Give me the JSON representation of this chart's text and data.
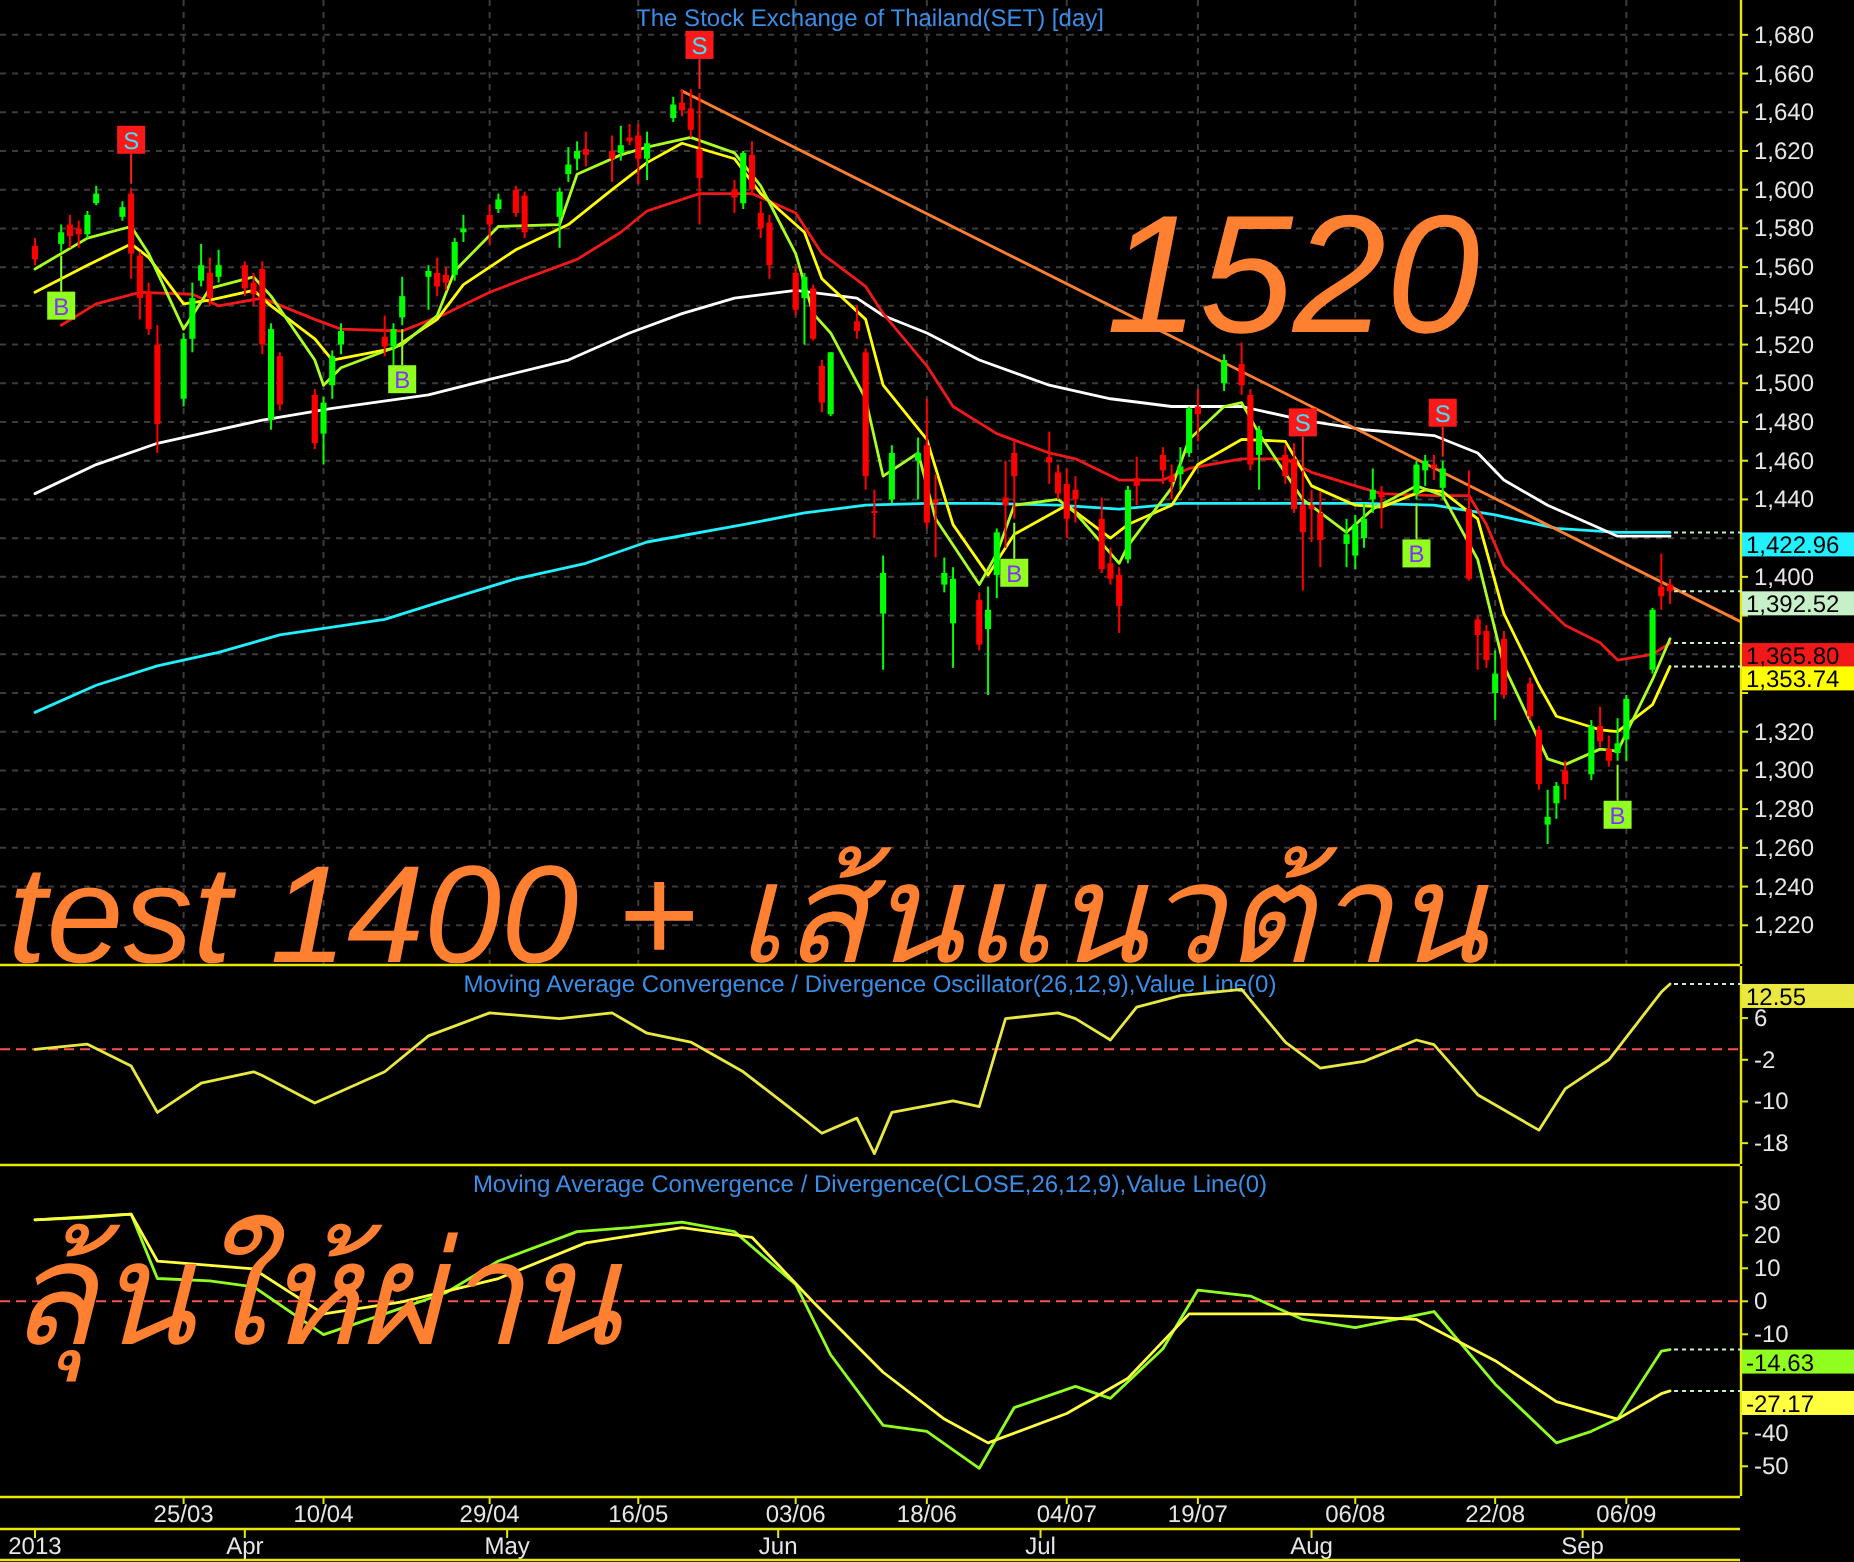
{
  "chart_data": [
    {
      "type": "candlestick",
      "title": "The Stock Exchange of Thailand(SET) [day]",
      "xlim": [
        "2013-03-04",
        "2013-09-19"
      ],
      "ylim": [
        1200,
        1698
      ],
      "grid": true,
      "tick_labels": "y",
      "xticks": [
        {
          "value": "2013-03-25",
          "label": null
        },
        {
          "value": "2013-04-10",
          "label": null
        },
        {
          "value": "2013-04-29",
          "label": null
        },
        {
          "value": "2013-05-16",
          "label": null
        },
        {
          "value": "2013-06-03",
          "label": null
        },
        {
          "value": "2013-06-18",
          "label": null
        },
        {
          "value": "2013-07-04",
          "label": null
        },
        {
          "value": "2013-07-19",
          "label": null
        },
        {
          "value": "2013-08-06",
          "label": null
        },
        {
          "value": "2013-08-22",
          "label": null
        },
        {
          "value": "2013-09-06",
          "label": null
        }
      ],
      "yticks": [
        {
          "value": 1220,
          "label": "1,220"
        },
        {
          "value": 1240,
          "label": "1,240"
        },
        {
          "value": 1260,
          "label": "1,260"
        },
        {
          "value": 1280,
          "label": "1,280"
        },
        {
          "value": 1300,
          "label": "1,300"
        },
        {
          "value": 1320,
          "label": "1,320"
        },
        {
          "value": 1340,
          "label": null
        },
        {
          "value": 1360,
          "label": null
        },
        {
          "value": 1380,
          "label": null
        },
        {
          "value": 1400,
          "label": "1,400"
        },
        {
          "value": 1420,
          "label": null
        },
        {
          "value": 1440,
          "label": "1,440"
        },
        {
          "value": 1460,
          "label": "1,460"
        },
        {
          "value": 1480,
          "label": "1,480"
        },
        {
          "value": 1500,
          "label": "1,500"
        },
        {
          "value": 1520,
          "label": "1,520"
        },
        {
          "value": 1540,
          "label": "1,540"
        },
        {
          "value": 1560,
          "label": "1,560"
        },
        {
          "value": 1580,
          "label": "1,580"
        },
        {
          "value": 1600,
          "label": "1,600"
        },
        {
          "value": 1620,
          "label": "1,620"
        },
        {
          "value": 1640,
          "label": "1,640"
        },
        {
          "value": 1660,
          "label": "1,660"
        },
        {
          "value": 1680,
          "label": "1,680"
        }
      ],
      "x": [
        "2013-03-08",
        "2013-03-11",
        "2013-03-12",
        "2013-03-13",
        "2013-03-14",
        "2013-03-15",
        "2013-03-18",
        "2013-03-19",
        "2013-03-20",
        "2013-03-21",
        "2013-03-22",
        "2013-03-25",
        "2013-03-26",
        "2013-03-27",
        "2013-03-28",
        "2013-03-29",
        "2013-04-01",
        "2013-04-02",
        "2013-04-03",
        "2013-04-04",
        "2013-04-05",
        "2013-04-09",
        "2013-04-10",
        "2013-04-11",
        "2013-04-12",
        "2013-04-17",
        "2013-04-18",
        "2013-04-19",
        "2013-04-22",
        "2013-04-23",
        "2013-04-24",
        "2013-04-25",
        "2013-04-26",
        "2013-04-29",
        "2013-04-30",
        "2013-05-02",
        "2013-05-03",
        "2013-05-07",
        "2013-05-08",
        "2013-05-09",
        "2013-05-10",
        "2013-05-13",
        "2013-05-14",
        "2013-05-15",
        "2013-05-16",
        "2013-05-17",
        "2013-05-20",
        "2013-05-21",
        "2013-05-22",
        "2013-05-23",
        "2013-05-27",
        "2013-05-28",
        "2013-05-29",
        "2013-05-30",
        "2013-05-31",
        "2013-06-03",
        "2013-06-04",
        "2013-06-05",
        "2013-06-06",
        "2013-06-07",
        "2013-06-10",
        "2013-06-11",
        "2013-06-12",
        "2013-06-13",
        "2013-06-14",
        "2013-06-17",
        "2013-06-18",
        "2013-06-19",
        "2013-06-20",
        "2013-06-21",
        "2013-06-24",
        "2013-06-25",
        "2013-06-26",
        "2013-06-27",
        "2013-06-28",
        "2013-07-02",
        "2013-07-03",
        "2013-07-04",
        "2013-07-05",
        "2013-07-08",
        "2013-07-09",
        "2013-07-10",
        "2013-07-11",
        "2013-07-12",
        "2013-07-15",
        "2013-07-16",
        "2013-07-17",
        "2013-07-18",
        "2013-07-19",
        "2013-07-22",
        "2013-07-24",
        "2013-07-25",
        "2013-07-26",
        "2013-07-29",
        "2013-07-30",
        "2013-07-31",
        "2013-08-01",
        "2013-08-02",
        "2013-08-05",
        "2013-08-06",
        "2013-08-07",
        "2013-08-08",
        "2013-08-09",
        "2013-08-13",
        "2013-08-14",
        "2013-08-15",
        "2013-08-16",
        "2013-08-19",
        "2013-08-20",
        "2013-08-21",
        "2013-08-22",
        "2013-08-23",
        "2013-08-26",
        "2013-08-27",
        "2013-08-28",
        "2013-08-29",
        "2013-08-30",
        "2013-09-02",
        "2013-09-03",
        "2013-09-04",
        "2013-09-05",
        "2013-09-06",
        "2013-09-09",
        "2013-09-10",
        "2013-09-11"
      ],
      "ohlc": [
        [
          1571,
          1575,
          1561,
          1564
        ],
        [
          1572,
          1582,
          1568,
          1578
        ],
        [
          1582,
          1587,
          1570,
          1576
        ],
        [
          1580,
          1584,
          1570,
          1577
        ],
        [
          1577,
          1589,
          1575,
          1587
        ],
        [
          1593,
          1602,
          1592,
          1598
        ],
        [
          1586,
          1594,
          1584,
          1591
        ],
        [
          1598,
          1601,
          1554,
          1567
        ],
        [
          1566,
          1568,
          1533,
          1544
        ],
        [
          1547,
          1552,
          1525,
          1528
        ],
        [
          1520,
          1530,
          1464,
          1479
        ],
        [
          1492,
          1526,
          1488,
          1523
        ],
        [
          1523,
          1552,
          1516,
          1544
        ],
        [
          1553,
          1572,
          1550,
          1561
        ],
        [
          1557,
          1565,
          1540,
          1544
        ],
        [
          1555,
          1569,
          1552,
          1561
        ],
        [
          1561,
          1563,
          1545,
          1549
        ],
        [
          1552,
          1557,
          1540,
          1546
        ],
        [
          1559,
          1563,
          1515,
          1520
        ],
        [
          1481,
          1531,
          1476,
          1528
        ],
        [
          1514,
          1516,
          1486,
          1489
        ],
        [
          1494,
          1497,
          1466,
          1469
        ],
        [
          1474,
          1493,
          1458,
          1490
        ],
        [
          1499,
          1517,
          1492,
          1514
        ],
        [
          1520,
          1531,
          1515,
          1527
        ],
        [
          1524,
          1535,
          1514,
          1519
        ],
        [
          1519,
          1531,
          1508,
          1528
        ],
        [
          1534,
          1555,
          1530,
          1545
        ],
        [
          1555,
          1561,
          1538,
          1558
        ],
        [
          1557,
          1565,
          1545,
          1550
        ],
        [
          1556,
          1560,
          1548,
          1552
        ],
        [
          1556,
          1575,
          1553,
          1573
        ],
        [
          1578,
          1587,
          1573,
          1580
        ],
        [
          1587,
          1592,
          1572,
          1582
        ],
        [
          1590,
          1598,
          1588,
          1595
        ],
        [
          1600,
          1602,
          1586,
          1588
        ],
        [
          1597,
          1599,
          1575,
          1578
        ],
        [
          1586,
          1601,
          1570,
          1599
        ],
        [
          1608,
          1622,
          1604,
          1613
        ],
        [
          1616,
          1625,
          1610,
          1620
        ],
        [
          1621,
          1630,
          1612,
          1618
        ],
        [
          1620,
          1628,
          1604,
          1616
        ],
        [
          1619,
          1633,
          1615,
          1623
        ],
        [
          1627,
          1634,
          1623,
          1625
        ],
        [
          1628,
          1634,
          1603,
          1616
        ],
        [
          1616,
          1630,
          1605,
          1624
        ],
        [
          1637,
          1648,
          1635,
          1644
        ],
        [
          1645,
          1652,
          1638,
          1641
        ],
        [
          1642,
          1652,
          1627,
          1631
        ],
        [
          1621,
          1650,
          1582,
          1606
        ],
        [
          1600,
          1605,
          1588,
          1596
        ],
        [
          1593,
          1620,
          1590,
          1619
        ],
        [
          1618,
          1625,
          1597,
          1600
        ],
        [
          1588,
          1594,
          1575,
          1580
        ],
        [
          1583,
          1587,
          1554,
          1561
        ],
        [
          1557,
          1560,
          1535,
          1538
        ],
        [
          1544,
          1557,
          1520,
          1555
        ],
        [
          1549,
          1551,
          1522,
          1523
        ],
        [
          1509,
          1512,
          1485,
          1490
        ],
        [
          1484,
          1516,
          1483,
          1516
        ],
        [
          1532,
          1540,
          1523,
          1527
        ],
        [
          1516,
          1518,
          1445,
          1452
        ],
        [
          1434,
          1445,
          1420,
          1433
        ],
        [
          1381,
          1411,
          1352,
          1402
        ],
        [
          1440,
          1468,
          1438,
          1464
        ],
        [
          1460,
          1472,
          1440,
          1464
        ],
        [
          1468,
          1492,
          1425,
          1428
        ],
        [
          1440,
          1453,
          1410,
          1438
        ],
        [
          1396,
          1410,
          1392,
          1402
        ],
        [
          1376,
          1405,
          1353,
          1399
        ],
        [
          1388,
          1392,
          1362,
          1365
        ],
        [
          1373,
          1395,
          1339,
          1383
        ],
        [
          1401,
          1425,
          1389,
          1423
        ],
        [
          1441,
          1460,
          1415,
          1437
        ],
        [
          1464,
          1470,
          1430,
          1452
        ],
        [
          1462,
          1475,
          1448,
          1459
        ],
        [
          1454,
          1458,
          1440,
          1443
        ],
        [
          1448,
          1456,
          1420,
          1430
        ],
        [
          1445,
          1452,
          1428,
          1440
        ],
        [
          1430,
          1441,
          1402,
          1404
        ],
        [
          1407,
          1415,
          1396,
          1399
        ],
        [
          1401,
          1405,
          1371,
          1385
        ],
        [
          1409,
          1447,
          1407,
          1445
        ],
        [
          1451,
          1462,
          1437,
          1447
        ],
        [
          1463,
          1467,
          1448,
          1455
        ],
        [
          1452,
          1458,
          1440,
          1449
        ],
        [
          1453,
          1467,
          1445,
          1457
        ],
        [
          1464,
          1488,
          1462,
          1487
        ],
        [
          1488,
          1497,
          1470,
          1484
        ],
        [
          1500,
          1515,
          1496,
          1512
        ],
        [
          1510,
          1521,
          1494,
          1499
        ],
        [
          1494,
          1497,
          1455,
          1458
        ],
        [
          1463,
          1478,
          1445,
          1476
        ],
        [
          1463,
          1468,
          1448,
          1452
        ],
        [
          1461,
          1469,
          1433,
          1435
        ],
        [
          1437,
          1455,
          1393,
          1423
        ],
        [
          1437,
          1445,
          1418,
          1435
        ],
        [
          1433,
          1444,
          1405,
          1419
        ],
        [
          1417,
          1430,
          1405,
          1422
        ],
        [
          1411,
          1432,
          1404,
          1427
        ],
        [
          1420,
          1438,
          1415,
          1430
        ],
        [
          1440,
          1456,
          1433,
          1445
        ],
        [
          1444,
          1447,
          1425,
          1441
        ],
        [
          1443,
          1460,
          1440,
          1458
        ],
        [
          1455,
          1463,
          1447,
          1460
        ],
        [
          1458,
          1463,
          1450,
          1456
        ],
        [
          1446,
          1460,
          1440,
          1456
        ],
        [
          1435,
          1455,
          1398,
          1399
        ],
        [
          1378,
          1380,
          1352,
          1370
        ],
        [
          1372,
          1375,
          1353,
          1357
        ],
        [
          1340,
          1362,
          1326,
          1350
        ],
        [
          1368,
          1372,
          1337,
          1339
        ],
        [
          1345,
          1348,
          1326,
          1328
        ],
        [
          1321,
          1323,
          1290,
          1293
        ],
        [
          1272,
          1290,
          1262,
          1276
        ],
        [
          1283,
          1294,
          1275,
          1292
        ],
        [
          1300,
          1305,
          1285,
          1293
        ],
        [
          1298,
          1326,
          1295,
          1323
        ],
        [
          1323,
          1333,
          1312,
          1315
        ],
        [
          1311,
          1318,
          1302,
          1305
        ],
        [
          1309,
          1327,
          1305,
          1314
        ],
        [
          1316,
          1339,
          1305,
          1337
        ],
        [
          1352,
          1384,
          1350,
          1383
        ],
        [
          1395,
          1412,
          1383,
          1390
        ],
        [
          1396,
          1399,
          1386,
          1392.52
        ]
      ],
      "series": [
        {
          "type": "line",
          "color": "#20f0ff",
          "x": [
            "2013-03-08",
            "2013-03-15",
            "2013-03-22",
            "2013-03-29",
            "2013-04-05",
            "2013-04-17",
            "2013-04-24",
            "2013-05-02",
            "2013-05-10",
            "2013-05-17",
            "2013-05-28",
            "2013-06-04",
            "2013-06-11",
            "2013-06-18",
            "2013-06-25",
            "2013-07-03",
            "2013-07-10",
            "2013-07-17",
            "2013-07-24",
            "2013-07-31",
            "2013-08-07",
            "2013-08-15",
            "2013-08-22",
            "2013-08-29",
            "2013-09-05",
            "2013-09-11"
          ],
          "values": [
            1330,
            1344,
            1354,
            1361,
            1370,
            1378,
            1388,
            1399,
            1407,
            1418,
            1427,
            1433,
            1437,
            1438,
            1438,
            1437,
            1435,
            1438,
            1438,
            1438,
            1438,
            1437,
            1432,
            1425,
            1423,
            1422.96
          ]
        },
        {
          "type": "line",
          "color": "#ffffff",
          "x": [
            "2013-03-08",
            "2013-03-15",
            "2013-03-22",
            "2013-03-27",
            "2013-04-03",
            "2013-04-11",
            "2013-04-22",
            "2013-04-29",
            "2013-05-08",
            "2013-05-15",
            "2013-05-21",
            "2013-05-27",
            "2013-06-03",
            "2013-06-10",
            "2013-06-13",
            "2013-06-18",
            "2013-06-24",
            "2013-07-02",
            "2013-07-09",
            "2013-07-16",
            "2013-07-24",
            "2013-07-31",
            "2013-08-07",
            "2013-08-15",
            "2013-08-20",
            "2013-08-23",
            "2013-08-28",
            "2013-09-02",
            "2013-09-05",
            "2013-09-11"
          ],
          "values": [
            1443,
            1458,
            1469,
            1474,
            1481,
            1487,
            1494,
            1502,
            1512,
            1526,
            1536,
            1544,
            1548,
            1544,
            1535,
            1526,
            1512,
            1499,
            1492,
            1488,
            1488,
            1481,
            1476,
            1473,
            1464,
            1450,
            1437,
            1427,
            1421,
            1421
          ]
        },
        {
          "type": "line",
          "color": "#f01818",
          "x": [
            "2013-03-11",
            "2013-03-15",
            "2013-03-20",
            "2013-03-26",
            "2013-03-29",
            "2013-04-03",
            "2013-04-09",
            "2013-04-12",
            "2013-04-19",
            "2013-04-24",
            "2013-04-29",
            "2013-05-03",
            "2013-05-09",
            "2013-05-14",
            "2013-05-17",
            "2013-05-23",
            "2013-05-29",
            "2013-06-03",
            "2013-06-06",
            "2013-06-11",
            "2013-06-13",
            "2013-06-18",
            "2013-06-21",
            "2013-06-26",
            "2013-07-02",
            "2013-07-05",
            "2013-07-10",
            "2013-07-15",
            "2013-07-18",
            "2013-07-24",
            "2013-07-29",
            "2013-08-01",
            "2013-08-06",
            "2013-08-09",
            "2013-08-15",
            "2013-08-19",
            "2013-08-21",
            "2013-08-23",
            "2013-08-27",
            "2013-08-30",
            "2013-09-03",
            "2013-09-05",
            "2013-09-09",
            "2013-09-11"
          ],
          "values": [
            1530,
            1541,
            1547,
            1546,
            1540,
            1544,
            1533,
            1528,
            1527,
            1536,
            1547,
            1554,
            1564,
            1578,
            1589,
            1598,
            1598,
            1588,
            1567,
            1550,
            1536,
            1509,
            1488,
            1474,
            1464,
            1461,
            1450,
            1450,
            1456,
            1461,
            1461,
            1454,
            1447,
            1443,
            1442,
            1442,
            1427,
            1406,
            1388,
            1375,
            1366,
            1357,
            1360,
            1365.8
          ]
        },
        {
          "type": "line",
          "color": "#ffff00",
          "x": [
            "2013-03-08",
            "2013-03-14",
            "2013-03-19",
            "2013-03-21",
            "2013-03-25",
            "2013-03-28",
            "2013-04-02",
            "2013-04-04",
            "2013-04-09",
            "2013-04-11",
            "2013-04-18",
            "2013-04-23",
            "2013-04-26",
            "2013-05-02",
            "2013-05-08",
            "2013-05-13",
            "2013-05-17",
            "2013-05-21",
            "2013-05-27",
            "2013-05-30",
            "2013-06-04",
            "2013-06-06",
            "2013-06-11",
            "2013-06-13",
            "2013-06-18",
            "2013-06-21",
            "2013-06-25",
            "2013-06-28",
            "2013-07-04",
            "2013-07-09",
            "2013-07-11",
            "2013-07-16",
            "2013-07-19",
            "2013-07-24",
            "2013-07-29",
            "2013-08-01",
            "2013-08-06",
            "2013-08-09",
            "2013-08-14",
            "2013-08-16",
            "2013-08-20",
            "2013-08-23",
            "2013-08-27",
            "2013-08-29",
            "2013-09-03",
            "2013-09-05",
            "2013-09-09",
            "2013-09-11"
          ],
          "values": [
            1547,
            1561,
            1572,
            1565,
            1541,
            1543,
            1548,
            1540,
            1523,
            1512,
            1518,
            1533,
            1551,
            1569,
            1582,
            1600,
            1614,
            1624,
            1616,
            1598,
            1578,
            1554,
            1533,
            1499,
            1471,
            1427,
            1401,
            1422,
            1437,
            1420,
            1427,
            1437,
            1458,
            1471,
            1470,
            1447,
            1437,
            1436,
            1445,
            1444,
            1430,
            1381,
            1344,
            1328,
            1321,
            1320,
            1334,
            1353.74
          ]
        },
        {
          "type": "line",
          "color": "#a8ff20",
          "x": [
            "2013-03-08",
            "2013-03-14",
            "2013-03-19",
            "2013-03-21",
            "2013-03-25",
            "2013-03-28",
            "2013-04-02",
            "2013-04-04",
            "2013-04-09",
            "2013-04-10",
            "2013-04-12",
            "2013-04-19",
            "2013-04-23",
            "2013-04-25",
            "2013-04-30",
            "2013-05-07",
            "2013-05-09",
            "2013-05-14",
            "2013-05-17",
            "2013-05-22",
            "2013-05-27",
            "2013-05-30",
            "2013-06-03",
            "2013-06-05",
            "2013-06-07",
            "2013-06-11",
            "2013-06-13",
            "2013-06-17",
            "2013-06-19",
            "2013-06-24",
            "2013-06-26",
            "2013-06-28",
            "2013-07-03",
            "2013-07-05",
            "2013-07-10",
            "2013-07-11",
            "2013-07-16",
            "2013-07-18",
            "2013-07-22",
            "2013-07-24",
            "2013-07-26",
            "2013-07-31",
            "2013-08-05",
            "2013-08-08",
            "2013-08-13",
            "2013-08-16",
            "2013-08-20",
            "2013-08-23",
            "2013-08-28",
            "2013-08-30",
            "2013-09-03",
            "2013-09-05",
            "2013-09-09",
            "2013-09-11"
          ],
          "values": [
            1559,
            1575,
            1581,
            1567,
            1528,
            1549,
            1555,
            1545,
            1512,
            1499,
            1508,
            1520,
            1535,
            1558,
            1581,
            1582,
            1608,
            1618,
            1622,
            1627,
            1619,
            1602,
            1567,
            1536,
            1526,
            1492,
            1452,
            1464,
            1430,
            1396,
            1412,
            1437,
            1440,
            1433,
            1407,
            1416,
            1446,
            1471,
            1488,
            1490,
            1474,
            1440,
            1423,
            1435,
            1447,
            1442,
            1409,
            1354,
            1306,
            1303,
            1311,
            1310,
            1347,
            1368
          ]
        },
        {
          "type": "line",
          "color": "#ff8030",
          "x": [
            "2013-05-21",
            "2013-09-19"
          ],
          "values": [
            1651,
            1377
          ]
        }
      ],
      "annotations": [
        "1520",
        "test 1400 + เส้นแนวต้าน",
        {
          "text": "B",
          "x": "2013-03-11",
          "y": 1568
        },
        {
          "text": "S",
          "x": "2013-03-19",
          "y": 1601
        },
        {
          "text": "B",
          "x": "2013-04-19",
          "y": 1530
        },
        {
          "text": "S",
          "x": "2013-05-23",
          "y": 1650
        },
        {
          "text": "B",
          "x": "2013-06-28",
          "y": 1430
        },
        {
          "text": "S",
          "x": "2013-07-31",
          "y": 1455
        },
        {
          "text": "B",
          "x": "2013-08-13",
          "y": 1440
        },
        {
          "text": "S",
          "x": "2013-08-16",
          "y": 1460
        },
        {
          "text": "B",
          "x": "2013-09-05",
          "y": 1305
        },
        {
          "text": "1,422.96",
          "x": "2013-09-11",
          "y": 1422.96
        },
        {
          "text": "1,392.52",
          "x": "2013-09-11",
          "y": 1392.52
        },
        {
          "text": "1,365.80",
          "x": "2013-09-11",
          "y": 1365.8
        },
        {
          "text": "1,353.74",
          "x": "2013-09-11",
          "y": 1353.74
        }
      ]
    },
    {
      "type": "line",
      "title": "Moving Average Convergence / Divergence Oscillator(26,12,9),Value Line(0)",
      "xlim": [
        "2013-03-04",
        "2013-09-19"
      ],
      "ylim": [
        -22,
        16
      ],
      "yticks": [
        6,
        -2,
        -10,
        -18
      ],
      "tick_labels": "y",
      "ref_lines": [
        {
          "axis": "y",
          "value": 0,
          "color": "#ff5050",
          "line_style": "dashed"
        }
      ],
      "series": [
        {
          "color": "#e8e840",
          "x": [
            "2013-03-08",
            "2013-03-14",
            "2013-03-19",
            "2013-03-22",
            "2013-03-27",
            "2013-04-02",
            "2013-04-03",
            "2013-04-09",
            "2013-04-17",
            "2013-04-22",
            "2013-04-29",
            "2013-05-07",
            "2013-05-13",
            "2013-05-17",
            "2013-05-22",
            "2013-05-28",
            "2013-06-03",
            "2013-06-06",
            "2013-06-10",
            "2013-06-12",
            "2013-06-14",
            "2013-06-21",
            "2013-06-24",
            "2013-06-27",
            "2013-07-03",
            "2013-07-05",
            "2013-07-09",
            "2013-07-12",
            "2013-07-17",
            "2013-07-24",
            "2013-07-29",
            "2013-08-02",
            "2013-08-07",
            "2013-08-13",
            "2013-08-15",
            "2013-08-20",
            "2013-08-27",
            "2013-08-30",
            "2013-09-04",
            "2013-09-10",
            "2013-09-11"
          ],
          "values": [
            0,
            1,
            -3.2,
            -12.1,
            -6.5,
            -4.3,
            -5,
            -10.3,
            -4.3,
            2.6,
            7,
            5.9,
            7,
            3.1,
            1.4,
            -4.3,
            -12.1,
            -16.1,
            -13.2,
            -20,
            -12.1,
            -9.9,
            -11,
            5.9,
            7,
            5.9,
            1.8,
            8.1,
            10.3,
            11.5,
            1.4,
            -3.6,
            -2.3,
            1.8,
            0.9,
            -8.7,
            -15.5,
            -7.6,
            -2,
            11,
            12.55
          ]
        }
      ],
      "annotations": [
        {
          "text": "12.55",
          "x": "2013-09-11",
          "y": 12.55
        }
      ]
    },
    {
      "type": "line",
      "title": "Moving Average Convergence / Divergence(CLOSE,26,12,9),Value Line(0)",
      "xlim": [
        "2013-03-04",
        "2013-09-19"
      ],
      "x2lim": [
        "2013-03-04",
        "2013-09-19"
      ],
      "ylim": [
        -59,
        41
      ],
      "yticks": [
        30,
        20,
        10,
        0,
        -10,
        {
          "value": -20,
          "label": null
        },
        {
          "value": -30,
          "label": null
        },
        -40,
        -50
      ],
      "xticks": [
        {
          "value": "2013-03-25",
          "label": "25/03"
        },
        {
          "value": "2013-04-10",
          "label": "10/04"
        },
        {
          "value": "2013-04-29",
          "label": "29/04"
        },
        {
          "value": "2013-05-16",
          "label": "16/05"
        },
        {
          "value": "2013-06-03",
          "label": "03/06"
        },
        {
          "value": "2013-06-18",
          "label": "18/06"
        },
        {
          "value": "2013-07-04",
          "label": "04/07"
        },
        {
          "value": "2013-07-19",
          "label": "19/07"
        },
        {
          "value": "2013-08-06",
          "label": "06/08"
        },
        {
          "value": "2013-08-22",
          "label": "22/08"
        },
        {
          "value": "2013-09-06",
          "label": "06/09"
        }
      ],
      "x2ticks": [
        {
          "value": "2013-03-08",
          "label": "2013"
        },
        {
          "value": "2013-04-01",
          "label": "Apr"
        },
        {
          "value": "2013-05-01",
          "label": "May"
        },
        {
          "value": "2013-06-01",
          "label": "Jun"
        },
        {
          "value": "2013-07-01",
          "label": "Jul"
        },
        {
          "value": "2013-08-01",
          "label": "Aug"
        },
        {
          "value": "2013-09-01",
          "label": "Sep"
        }
      ],
      "ref_lines": [
        {
          "axis": "y",
          "value": 0,
          "color": "#ff5050",
          "line_style": "dashed"
        }
      ],
      "series": [
        {
          "color": "#90ff20",
          "x": [
            "2013-03-08",
            "2013-03-14",
            "2013-03-19",
            "2013-03-22",
            "2013-03-28",
            "2013-04-02",
            "2013-04-10",
            "2013-04-17",
            "2013-04-24",
            "2013-04-30",
            "2013-05-09",
            "2013-05-15",
            "2013-05-21",
            "2013-05-27",
            "2013-06-03",
            "2013-06-07",
            "2013-06-13",
            "2013-06-18",
            "2013-06-24",
            "2013-06-28",
            "2013-07-05",
            "2013-07-09",
            "2013-07-15",
            "2013-07-19",
            "2013-07-25",
            "2013-07-31",
            "2013-08-06",
            "2013-08-15",
            "2013-08-22",
            "2013-08-29",
            "2013-09-02",
            "2013-09-05",
            "2013-09-10",
            "2013-09-11"
          ],
          "values": [
            24.7,
            25.4,
            26.4,
            6.9,
            6.2,
            4.4,
            -10.1,
            -3.8,
            2.6,
            12.2,
            21.1,
            22.3,
            24,
            21.1,
            5.1,
            -16.2,
            -37.6,
            -39.4,
            -50.6,
            -32.2,
            -25.8,
            -29.4,
            -14.4,
            3.4,
            1.6,
            -5.5,
            -8,
            -3.1,
            -25.1,
            -42.9,
            -39.4,
            -35.7,
            -15.1,
            -14.63
          ]
        },
        {
          "color": "#ffff40",
          "x": [
            "2013-03-08",
            "2013-03-19",
            "2013-03-22",
            "2013-04-02",
            "2013-04-10",
            "2013-04-19",
            "2013-04-30",
            "2013-05-10",
            "2013-05-21",
            "2013-05-29",
            "2013-06-05",
            "2013-06-13",
            "2013-06-20",
            "2013-06-25",
            "2013-07-04",
            "2013-07-11",
            "2013-07-18",
            "2013-07-30",
            "2013-08-13",
            "2013-08-22",
            "2013-08-29",
            "2013-09-05",
            "2013-09-10",
            "2013-09-11"
          ],
          "values": [
            24.7,
            26.4,
            12.2,
            9.8,
            -3.8,
            -0.2,
            6.9,
            17.7,
            22.3,
            19.4,
            -0.2,
            -21.5,
            -35.7,
            -42.9,
            -34,
            -23.3,
            -3.8,
            -3.8,
            -5.5,
            -18,
            -30.4,
            -35.7,
            -28,
            -27.17
          ]
        }
      ],
      "annotations": [
        "ลุ้นให้ผ่าน",
        {
          "text": "-14.63",
          "x": "2013-09-11",
          "y": -14.63
        },
        {
          "text": "-27.17",
          "x": "2013-09-11",
          "y": -27.17
        }
      ]
    }
  ]
}
